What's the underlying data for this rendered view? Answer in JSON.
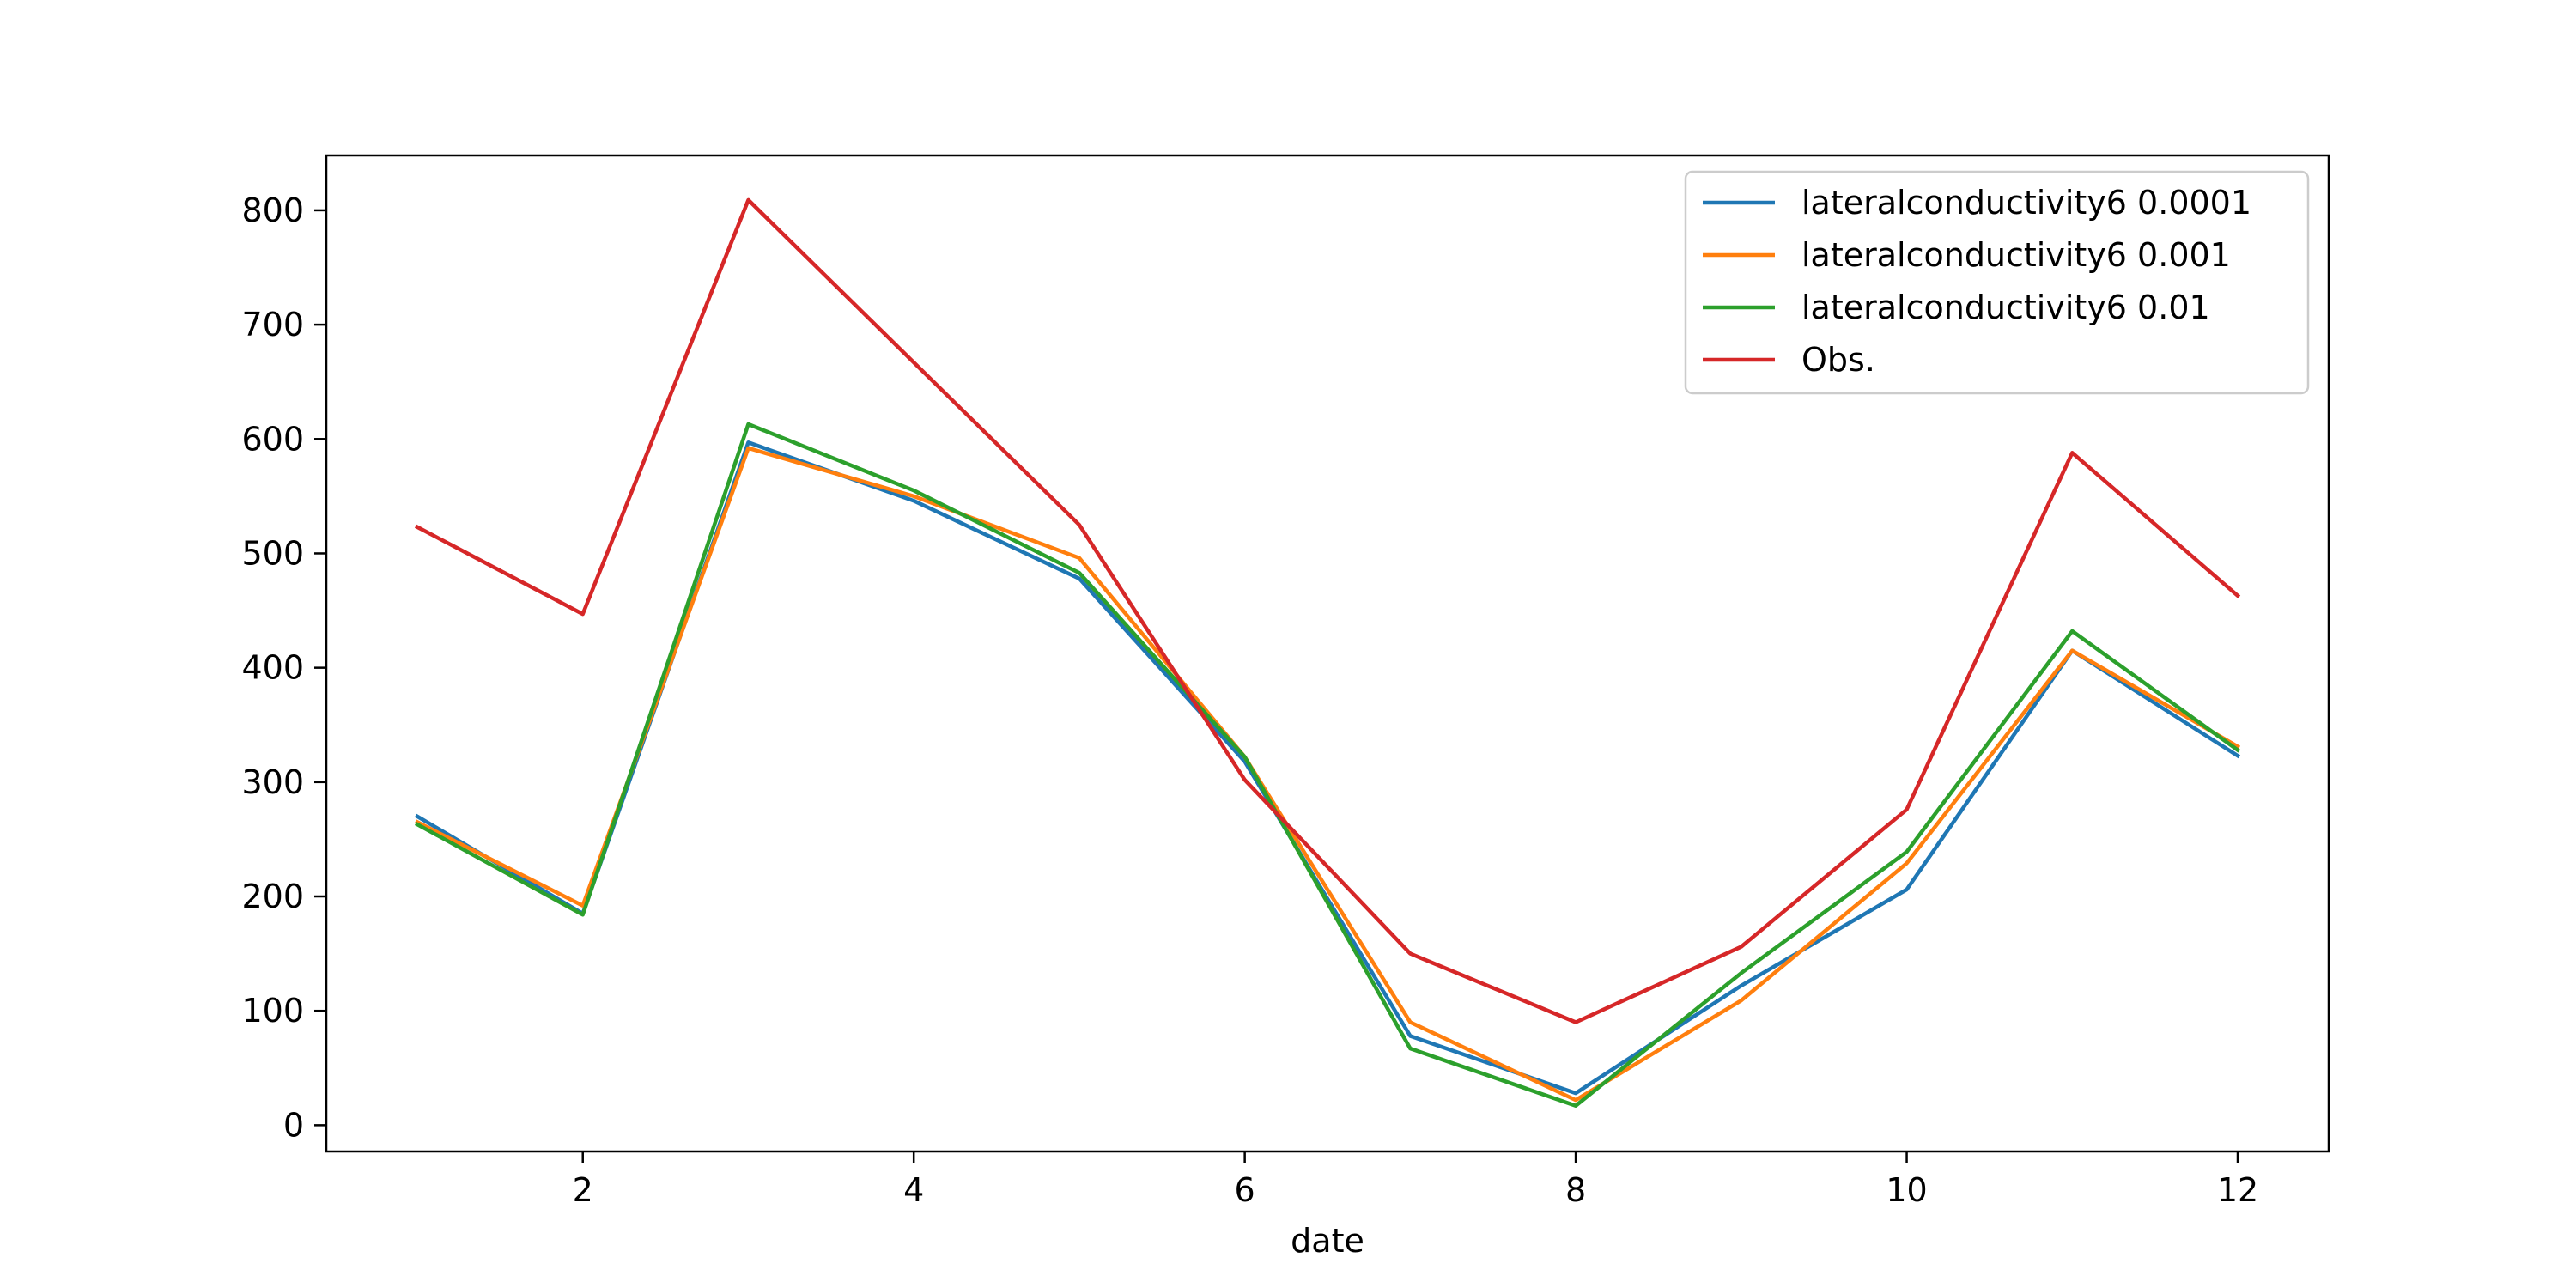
{
  "chart_data": {
    "type": "line",
    "title": "",
    "xlabel": "date",
    "ylabel": "",
    "xlim": [
      0.45,
      12.55
    ],
    "ylim": [
      -23,
      848
    ],
    "xticks": [
      2,
      4,
      6,
      8,
      10,
      12
    ],
    "yticks": [
      0,
      100,
      200,
      300,
      400,
      500,
      600,
      700,
      800
    ],
    "grid": false,
    "legend_position": "top-right",
    "x": [
      1,
      2,
      3,
      4,
      5,
      6,
      7,
      8,
      9,
      10,
      11,
      12
    ],
    "series": [
      {
        "name": "lateralconductivity6 0.0001",
        "color": "#1f77b4",
        "values": [
          270,
          185,
          597,
          546,
          478,
          318,
          78,
          28,
          122,
          206,
          415,
          323
        ]
      },
      {
        "name": "lateralconductivity6 0.001",
        "color": "#ff7f0e",
        "values": [
          265,
          192,
          592,
          550,
          496,
          322,
          90,
          22,
          109,
          229,
          415,
          331
        ]
      },
      {
        "name": "lateralconductivity6 0.01",
        "color": "#2ca02c",
        "values": [
          263,
          184,
          613,
          555,
          483,
          322,
          67,
          17,
          133,
          239,
          432,
          328
        ]
      },
      {
        "name": "Obs.",
        "color": "#d62728",
        "values": [
          523,
          447,
          809,
          667,
          525,
          302,
          150,
          90,
          156,
          276,
          588,
          463
        ]
      }
    ]
  }
}
